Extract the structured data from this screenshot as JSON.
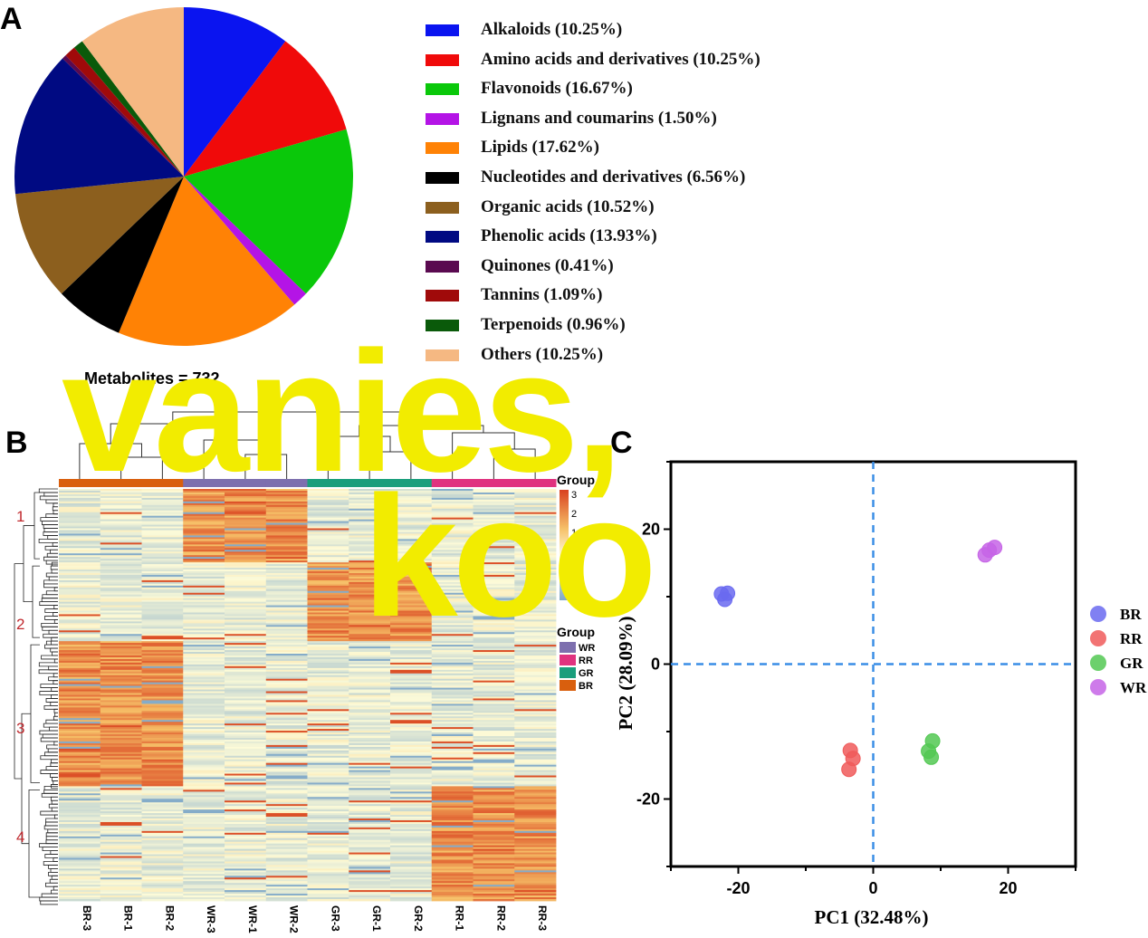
{
  "panels": {
    "a": "A",
    "b": "B",
    "c": "C"
  },
  "overlay": {
    "line1": "vanies,",
    "line2": "koo"
  },
  "chart_data": [
    {
      "type": "pie",
      "slices": [
        {
          "label": "Alkaloids (10.25%)",
          "value": 10.25,
          "color": "#0a14f0"
        },
        {
          "label": "Amino acids and derivatives (10.25%)",
          "value": 10.25,
          "color": "#f00a0a"
        },
        {
          "label": "Flavonoids (16.67%)",
          "value": 16.67,
          "color": "#0ac80a"
        },
        {
          "label": "Lignans and coumarins (1.50%)",
          "value": 1.5,
          "color": "#b414e6"
        },
        {
          "label": "Lipids (17.62%)",
          "value": 17.62,
          "color": "#ff8205"
        },
        {
          "label": "Nucleotides and derivatives (6.56%)",
          "value": 6.56,
          "color": "#000000"
        },
        {
          "label": "Organic acids (10.52%)",
          "value": 10.52,
          "color": "#8c5f1e"
        },
        {
          "label": "Phenolic acids (13.93%)",
          "value": 13.93,
          "color": "#000a82"
        },
        {
          "label": "Quinones (0.41%)",
          "value": 0.41,
          "color": "#5a0a50"
        },
        {
          "label": "Tannins (1.09%)",
          "value": 1.09,
          "color": "#a00a0a"
        },
        {
          "label": "Terpenoids (0.96%)",
          "value": 0.96,
          "color": "#0a5a0a"
        },
        {
          "label": "Others (10.25%)",
          "value": 10.25,
          "color": "#f5b882"
        }
      ],
      "legend": "right"
    },
    {
      "type": "heatmap",
      "title": "Metabolites = 732",
      "columns": [
        "BR-3",
        "BR-1",
        "BR-2",
        "WR-3",
        "WR-1",
        "WR-2",
        "GR-3",
        "GR-1",
        "GR-2",
        "RR-1",
        "RR-2",
        "RR-3"
      ],
      "column_groups": [
        "BR",
        "BR",
        "BR",
        "WR",
        "WR",
        "WR",
        "GR",
        "GR",
        "GR",
        "RR",
        "RR",
        "RR"
      ],
      "clusters": [
        {
          "label": "1",
          "row_share": 0.18,
          "high_groups": [
            "WR"
          ]
        },
        {
          "label": "2",
          "row_share": 0.19,
          "high_groups": [
            "GR"
          ]
        },
        {
          "label": "3",
          "row_share": 0.35,
          "high_groups": [
            "BR"
          ]
        },
        {
          "label": "4",
          "row_share": 0.28,
          "high_groups": [
            "RR"
          ]
        }
      ],
      "color_scale": {
        "title": "Group",
        "ticks": [
          "3",
          "2",
          "1",
          "0",
          "−1",
          "−2"
        ],
        "colors": [
          "#7fa8c8",
          "#fdfbd8",
          "#f6c068",
          "#d9411f"
        ]
      },
      "group_legend": {
        "title": "Group",
        "items": [
          {
            "label": "WR",
            "color": "#7d6fae"
          },
          {
            "label": "RR",
            "color": "#e0327f"
          },
          {
            "label": "GR",
            "color": "#1a9e7c"
          },
          {
            "label": "BR",
            "color": "#d95f0e"
          }
        ]
      }
    },
    {
      "type": "scatter",
      "xlabel": "PC1 (32.48%)",
      "ylabel": "PC2 (28.09%)",
      "xlim": [
        -30,
        30
      ],
      "ylim": [
        -30,
        30
      ],
      "xticks": [
        "-20",
        "0",
        "20"
      ],
      "yticks": [
        "20",
        "0",
        "-20"
      ],
      "reference_lines": "x = 0 and y = 0, dashed",
      "legend": "right",
      "series": [
        {
          "name": "BR",
          "color": "#6a6af0",
          "points": [
            [
              -22.5,
              10.4
            ],
            [
              -22.0,
              9.6
            ],
            [
              -21.6,
              10.5
            ]
          ]
        },
        {
          "name": "RR",
          "color": "#f05a5a",
          "points": [
            [
              -3.4,
              -12.8
            ],
            [
              -3.0,
              -14.0
            ],
            [
              -3.6,
              -15.6
            ]
          ]
        },
        {
          "name": "GR",
          "color": "#52c852",
          "points": [
            [
              8.8,
              -11.4
            ],
            [
              8.2,
              -12.9
            ],
            [
              8.6,
              -13.8
            ]
          ]
        },
        {
          "name": "WR",
          "color": "#c664e6",
          "points": [
            [
              16.6,
              16.2
            ],
            [
              17.2,
              16.9
            ],
            [
              18.0,
              17.3
            ]
          ]
        }
      ]
    }
  ]
}
